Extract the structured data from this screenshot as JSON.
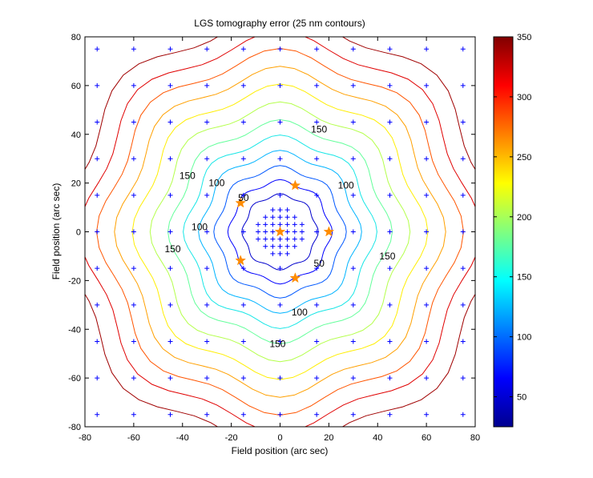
{
  "chart_data": {
    "type": "contour",
    "title": "LGS tomography error (25 nm contours)",
    "xlabel": "Field position (arc sec)",
    "ylabel": "Field position (arc sec)",
    "xlim": [
      -80,
      80
    ],
    "ylim": [
      -80,
      80
    ],
    "xticks": [
      -80,
      -60,
      -40,
      -20,
      0,
      20,
      40,
      60,
      80
    ],
    "yticks": [
      -80,
      -60,
      -40,
      -20,
      0,
      20,
      40,
      60,
      80
    ],
    "grid": false,
    "contour_interval_nm": 25,
    "colormap": "jet",
    "colorbar": {
      "range": [
        25,
        350
      ],
      "ticks": [
        50,
        100,
        150,
        200,
        250,
        300,
        350
      ],
      "placement": "right"
    },
    "contour_levels": [
      {
        "level": 50,
        "radius": 15,
        "color": "#0000cd"
      },
      {
        "level": 75,
        "radius": 20.5,
        "color": "#0000ff"
      },
      {
        "level": 100,
        "radius": 26,
        "color": "#0058ff"
      },
      {
        "level": 125,
        "radius": 32,
        "color": "#00b4ff"
      },
      {
        "level": 150,
        "radius": 38,
        "color": "#17e6e6"
      },
      {
        "level": 175,
        "radius": 44,
        "color": "#64ff9b"
      },
      {
        "level": 200,
        "radius": 51,
        "color": "#b4ff4b"
      },
      {
        "level": 225,
        "radius": 58,
        "color": "#ffee00"
      },
      {
        "level": 250,
        "radius": 65,
        "color": "#ffa000"
      },
      {
        "level": 275,
        "radius": 72,
        "color": "#ff5500"
      },
      {
        "level": 300,
        "radius": 79,
        "color": "#e00000"
      },
      {
        "level": 325,
        "radius": 87,
        "color": "#a00000"
      }
    ],
    "contour_labels": [
      {
        "text": "150",
        "x": 16,
        "y": 42
      },
      {
        "text": "100",
        "x": -26,
        "y": 20
      },
      {
        "text": "150",
        "x": -38,
        "y": 23
      },
      {
        "text": "100",
        "x": 27,
        "y": 19
      },
      {
        "text": "50",
        "x": -15,
        "y": 14
      },
      {
        "text": "100",
        "x": -33,
        "y": 2
      },
      {
        "text": "150",
        "x": -44,
        "y": -7
      },
      {
        "text": "150",
        "x": 44,
        "y": -10
      },
      {
        "text": "50",
        "x": 16,
        "y": -13
      },
      {
        "text": "100",
        "x": 8,
        "y": -33
      },
      {
        "text": "150",
        "x": -1,
        "y": -46
      }
    ],
    "grid_points": {
      "outer_coords": [
        -75,
        -60,
        -45,
        -30,
        -15,
        0,
        15,
        30,
        45,
        60,
        75
      ],
      "inner_coords": [
        -9,
        -6,
        -3,
        0,
        3,
        6,
        9
      ],
      "inner_radius": 10,
      "marker": "+",
      "color": "#0000ff"
    },
    "guide_stars": {
      "marker": "star",
      "color": "#ff8c00",
      "points": [
        {
          "x": 0,
          "y": 0
        },
        {
          "x": 20,
          "y": 0
        },
        {
          "x": 6.2,
          "y": 19
        },
        {
          "x": -16.2,
          "y": 11.8
        },
        {
          "x": -16.2,
          "y": -11.8
        },
        {
          "x": 6.2,
          "y": -19
        }
      ]
    }
  }
}
